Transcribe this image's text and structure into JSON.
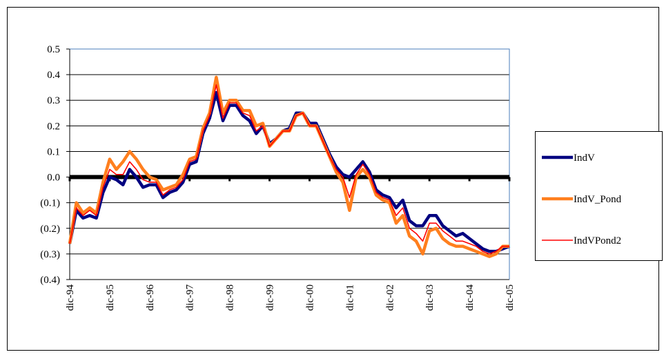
{
  "chart_data": {
    "type": "line",
    "categories": [
      "dic-94",
      null,
      null,
      null,
      null,
      null,
      "dic-95",
      null,
      null,
      null,
      null,
      null,
      "dic-96",
      null,
      null,
      null,
      null,
      null,
      "dic-97",
      null,
      null,
      null,
      null,
      null,
      "dic-98",
      null,
      null,
      null,
      null,
      null,
      "dic-99",
      null,
      null,
      null,
      null,
      null,
      "dic-00",
      null,
      null,
      null,
      null,
      null,
      "dic-01",
      null,
      null,
      null,
      null,
      null,
      "dic-02",
      null,
      null,
      null,
      null,
      null,
      "dic-03",
      null,
      null,
      null,
      null,
      null,
      "dic-04",
      null,
      null,
      null,
      null,
      null,
      "dic-05"
    ],
    "series": [
      {
        "name": "IndV",
        "color": "#000080",
        "values": [
          -0.26,
          -0.13,
          -0.16,
          -0.15,
          -0.16,
          -0.06,
          0.0,
          -0.01,
          -0.03,
          0.03,
          0.0,
          -0.04,
          -0.03,
          -0.03,
          -0.08,
          -0.06,
          -0.05,
          -0.02,
          0.05,
          0.06,
          0.17,
          0.23,
          0.33,
          0.22,
          0.28,
          0.28,
          0.24,
          0.22,
          0.17,
          0.2,
          0.13,
          0.15,
          0.18,
          0.19,
          0.25,
          0.25,
          0.21,
          0.21,
          0.15,
          0.09,
          0.04,
          0.01,
          0.0,
          0.03,
          0.06,
          0.02,
          -0.05,
          -0.07,
          -0.08,
          -0.12,
          -0.09,
          -0.17,
          -0.19,
          -0.19,
          -0.15,
          -0.15,
          -0.19,
          -0.21,
          -0.23,
          -0.22,
          -0.24,
          -0.26,
          -0.28,
          -0.29,
          -0.29,
          -0.28,
          -0.27
        ]
      },
      {
        "name": "IndV_Pond",
        "color": "#ff7f1e",
        "values": [
          -0.26,
          -0.1,
          -0.14,
          -0.12,
          -0.14,
          -0.02,
          0.07,
          0.03,
          0.06,
          0.1,
          0.07,
          0.03,
          0.0,
          -0.01,
          -0.05,
          -0.04,
          -0.03,
          0.01,
          0.07,
          0.08,
          0.19,
          0.25,
          0.39,
          0.25,
          0.3,
          0.3,
          0.26,
          0.26,
          0.2,
          0.21,
          0.12,
          0.15,
          0.18,
          0.18,
          0.24,
          0.25,
          0.2,
          0.2,
          0.14,
          0.08,
          0.02,
          -0.02,
          -0.13,
          0.0,
          0.03,
          0.0,
          -0.07,
          -0.09,
          -0.1,
          -0.18,
          -0.15,
          -0.23,
          -0.25,
          -0.3,
          -0.21,
          -0.2,
          -0.24,
          -0.26,
          -0.27,
          -0.27,
          -0.28,
          -0.29,
          -0.3,
          -0.31,
          -0.3,
          -0.27,
          -0.27
        ]
      },
      {
        "name": "IndVPond2",
        "color": "#ff0000",
        "values": [
          -0.26,
          -0.12,
          -0.15,
          -0.13,
          -0.15,
          -0.04,
          0.03,
          0.01,
          0.01,
          0.06,
          0.03,
          -0.01,
          -0.02,
          -0.02,
          -0.07,
          -0.05,
          -0.04,
          -0.01,
          0.06,
          0.07,
          0.18,
          0.24,
          0.36,
          0.23,
          0.29,
          0.29,
          0.25,
          0.24,
          0.18,
          0.2,
          0.12,
          0.15,
          0.18,
          0.18,
          0.24,
          0.25,
          0.2,
          0.2,
          0.14,
          0.08,
          0.03,
          0.0,
          -0.08,
          0.01,
          0.05,
          0.01,
          -0.06,
          -0.08,
          -0.09,
          -0.15,
          -0.12,
          -0.2,
          -0.22,
          -0.25,
          -0.18,
          -0.18,
          -0.21,
          -0.23,
          -0.25,
          -0.25,
          -0.26,
          -0.27,
          -0.29,
          -0.3,
          -0.29,
          -0.27,
          -0.27
        ]
      }
    ],
    "ylim": [
      -0.4,
      0.5
    ],
    "yticks": [
      {
        "value": -0.4,
        "label": "(0.4)"
      },
      {
        "value": -0.3,
        "label": "(0.3)"
      },
      {
        "value": -0.2,
        "label": "(0.2)"
      },
      {
        "value": -0.1,
        "label": "(0.1)"
      },
      {
        "value": 0,
        "label": "0.0"
      },
      0.1,
      0.2,
      0.3,
      0.4,
      0.5
    ],
    "grid": true,
    "legend": "right"
  }
}
